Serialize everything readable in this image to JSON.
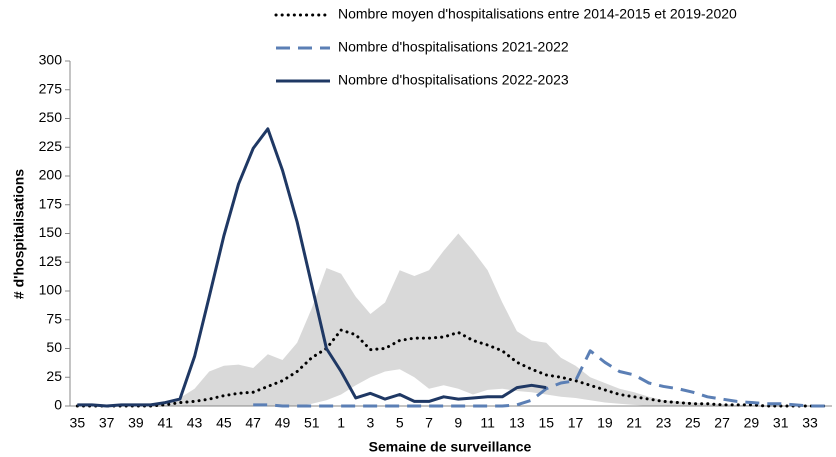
{
  "chart_data": {
    "type": "line",
    "x_label": "Semaine de surveillance",
    "y_label": "# d'hospitalisations",
    "categories": [
      "35",
      null,
      "37",
      null,
      "39",
      null,
      "41",
      null,
      "43",
      null,
      "45",
      null,
      "47",
      null,
      "49",
      null,
      "51",
      null,
      "1",
      null,
      "3",
      null,
      "5",
      null,
      "7",
      null,
      "9",
      null,
      "11",
      null,
      "13",
      null,
      "15",
      null,
      "17",
      null,
      "19",
      null,
      "21",
      null,
      "23",
      null,
      "25",
      null,
      "27",
      null,
      "29",
      null,
      "31",
      null,
      "33",
      null
    ],
    "ylim": [
      0,
      300
    ],
    "yticks": [
      0,
      25,
      50,
      75,
      100,
      125,
      150,
      175,
      200,
      225,
      250,
      275,
      300
    ],
    "band": {
      "color": "#d9d9d9",
      "high": [
        0,
        0,
        0,
        0,
        0,
        1,
        3,
        7,
        15,
        30,
        35,
        36,
        33,
        45,
        40,
        55,
        85,
        120,
        115,
        95,
        80,
        90,
        118,
        113,
        118,
        135,
        150,
        135,
        118,
        90,
        65,
        57,
        55,
        42,
        35,
        25,
        20,
        15,
        12,
        8,
        5,
        4,
        3,
        2,
        2,
        1,
        1,
        0,
        0,
        0,
        0,
        0
      ],
      "low": [
        0,
        0,
        0,
        0,
        0,
        0,
        0,
        0,
        0,
        0,
        0,
        0,
        0,
        0,
        0,
        0,
        2,
        5,
        10,
        18,
        25,
        30,
        32,
        25,
        15,
        18,
        15,
        10,
        14,
        15,
        13,
        12,
        10,
        8,
        7,
        5,
        3,
        2,
        1,
        0,
        0,
        0,
        0,
        0,
        0,
        0,
        0,
        0,
        0,
        0,
        0,
        0
      ]
    },
    "series": [
      {
        "name": "Nombre moyen d'hospitalisations entre 2014-2015 et 2019-2020",
        "color": "#000000",
        "style": "dotted",
        "values": [
          0,
          0,
          0,
          0,
          0,
          0,
          1,
          3,
          4,
          6,
          9,
          11,
          12,
          17,
          22,
          30,
          42,
          50,
          66,
          62,
          49,
          50,
          57,
          59,
          59,
          60,
          64,
          57,
          53,
          48,
          38,
          32,
          27,
          25,
          22,
          18,
          14,
          10,
          8,
          6,
          4,
          3,
          2,
          2,
          1,
          1,
          1,
          0,
          0,
          0,
          0,
          0
        ]
      },
      {
        "name": "Nombre d'hospitalisations 2021-2022",
        "color": "#5b7fb5",
        "style": "dashed",
        "values": [
          null,
          null,
          null,
          null,
          null,
          null,
          null,
          null,
          null,
          null,
          null,
          null,
          1,
          1,
          0,
          0,
          0,
          0,
          0,
          0,
          0,
          0,
          0,
          0,
          0,
          0,
          0,
          0,
          0,
          0,
          1,
          5,
          15,
          20,
          22,
          48,
          38,
          30,
          27,
          20,
          17,
          15,
          12,
          8,
          6,
          4,
          3,
          2,
          2,
          1,
          0,
          0
        ]
      },
      {
        "name": "Nombre d'hospitalisations 2022-2023",
        "color": "#1f3864",
        "style": "solid",
        "values": [
          1,
          1,
          0,
          1,
          1,
          1,
          3,
          6,
          43,
          95,
          148,
          193,
          224,
          241,
          205,
          160,
          105,
          50,
          30,
          7,
          11,
          6,
          10,
          4,
          4,
          8,
          6,
          7,
          8,
          8,
          16,
          18,
          16,
          null,
          null,
          null,
          null,
          null,
          null,
          null,
          null,
          null,
          null,
          null,
          null,
          null,
          null,
          null,
          null,
          null,
          null,
          null
        ]
      }
    ]
  }
}
